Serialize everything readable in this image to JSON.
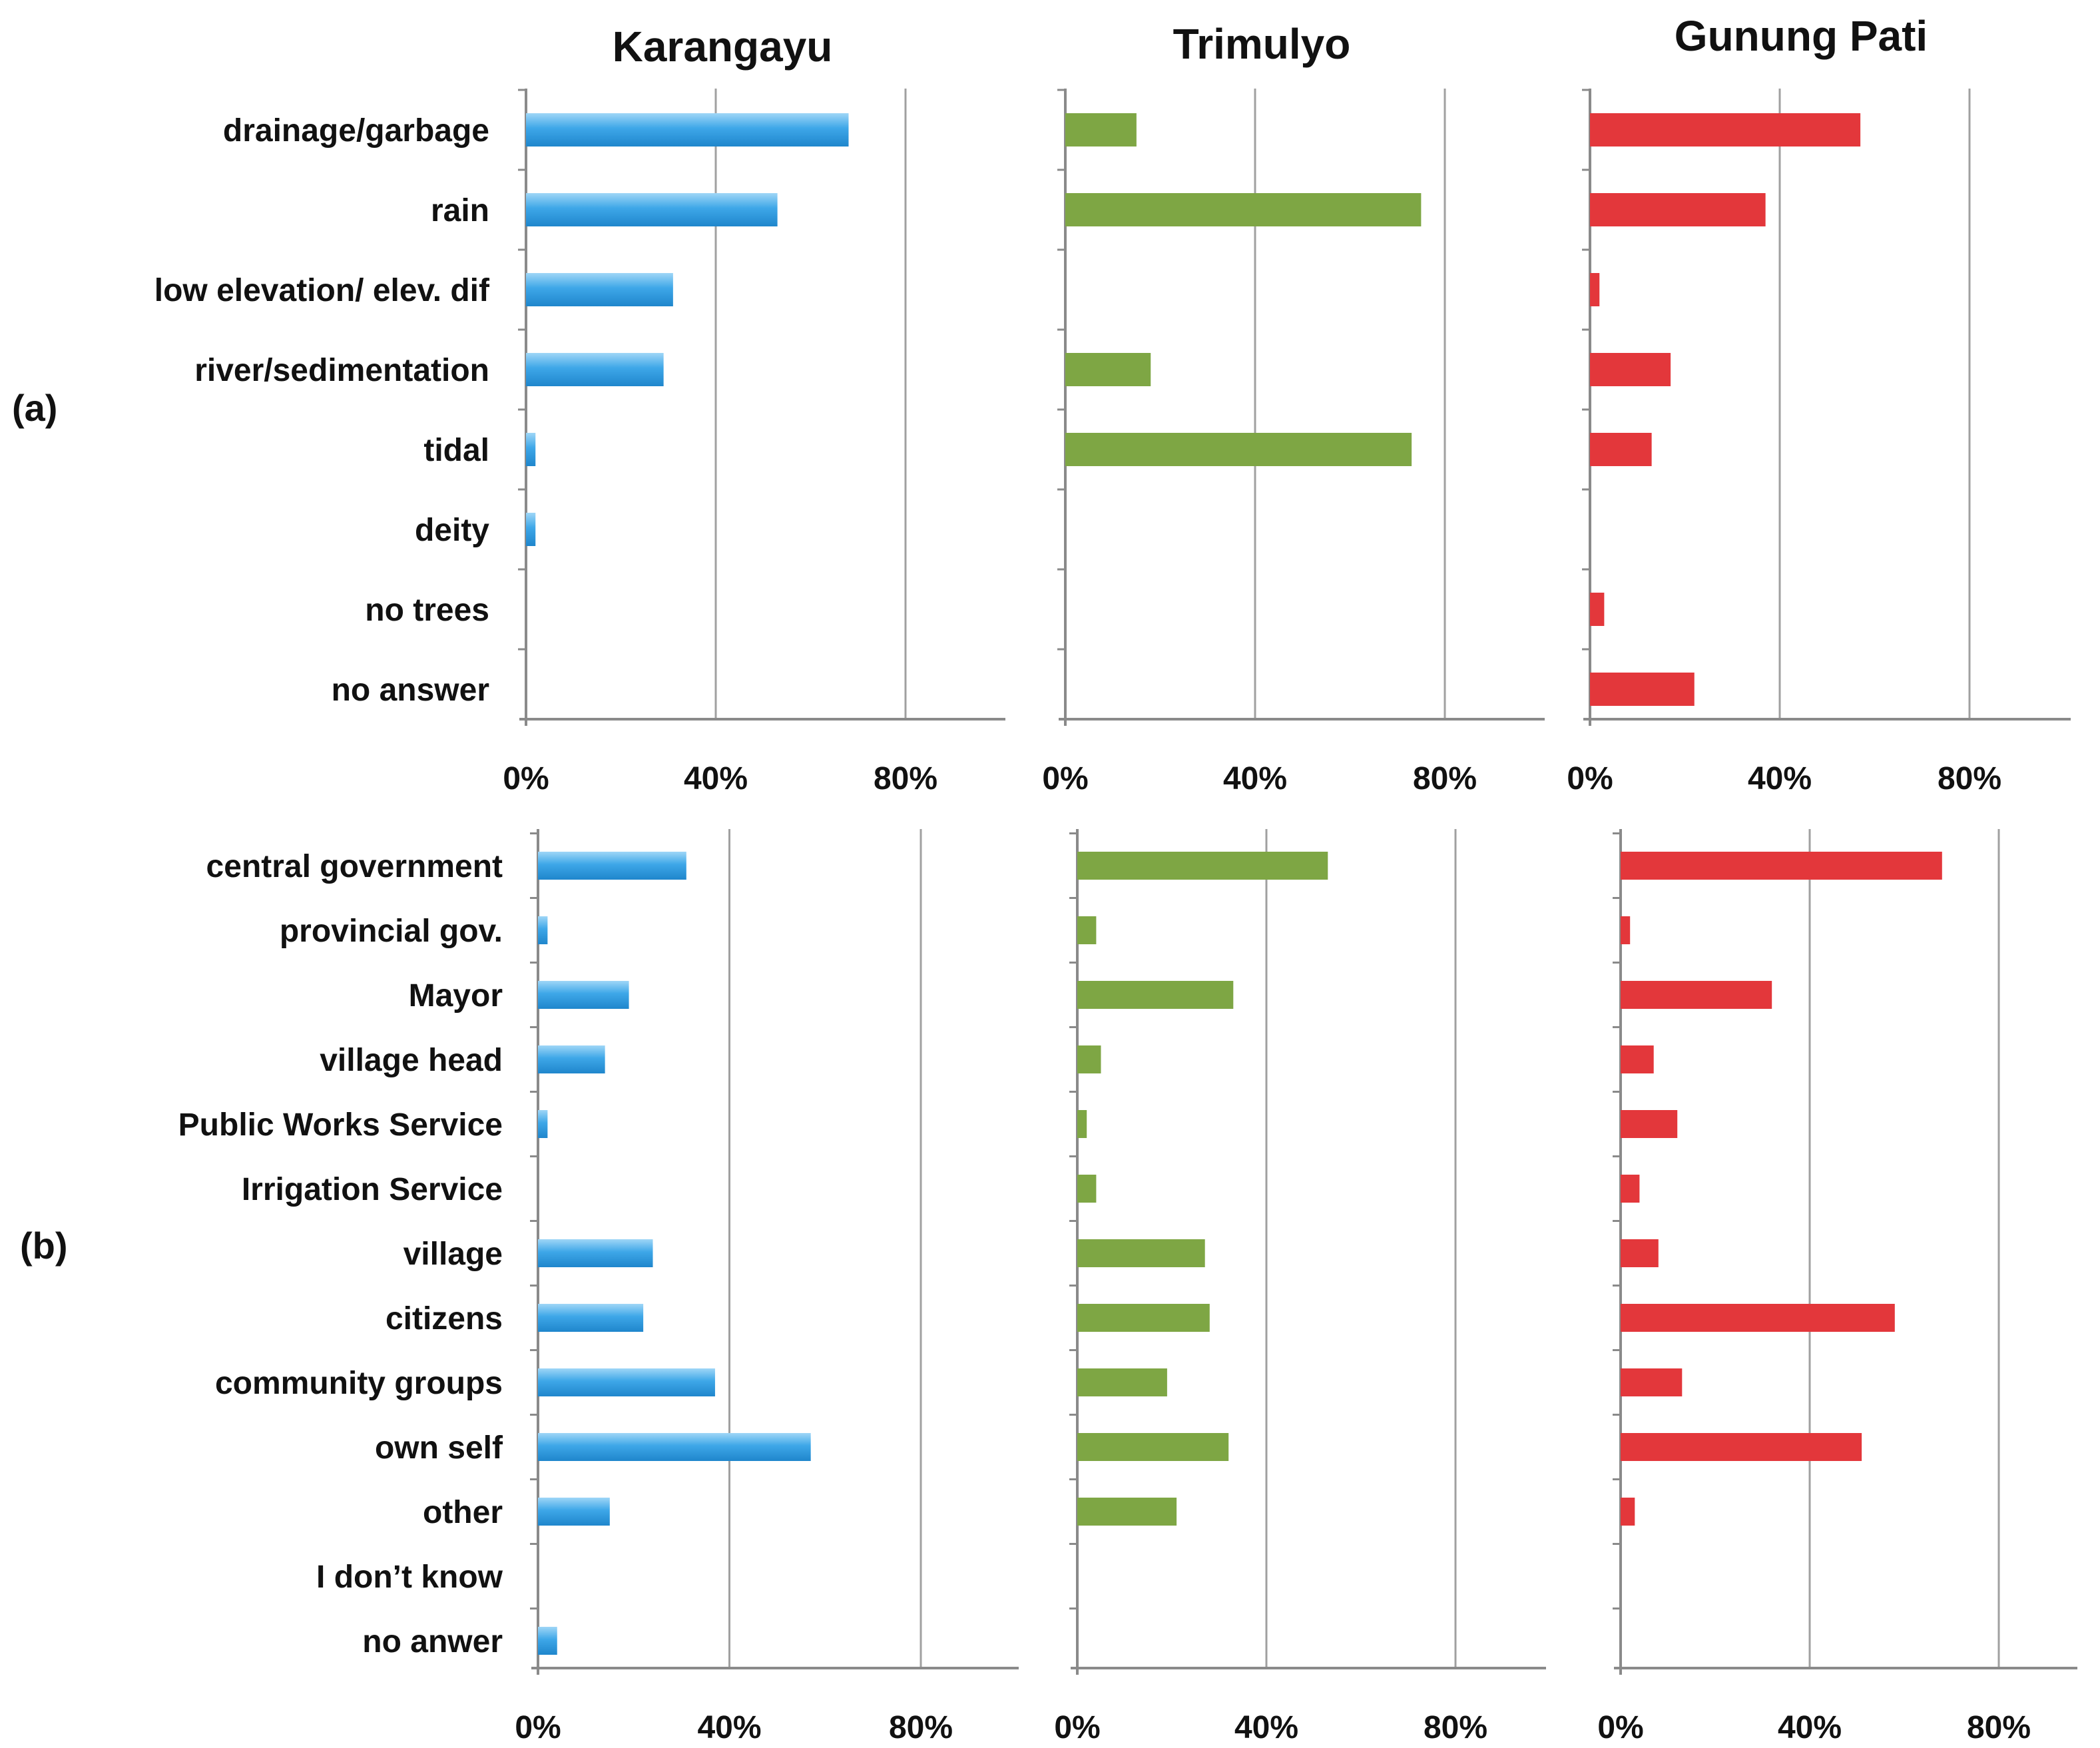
{
  "columns": [
    "Karangayu",
    "Trimulyo",
    "Gunung Pati"
  ],
  "panel_labels": [
    "(a)",
    "(b)"
  ],
  "colors": {
    "Karangayu": "#3ea7e8",
    "Trimulyo": "#7ea644",
    "Gunung Pati": "#e3373b"
  },
  "chart_data": [
    {
      "type": "bar",
      "orientation": "horizontal",
      "panel": "(a)",
      "categories": [
        "drainage/garbage",
        "rain",
        "low elevation/ elev. dif",
        "river/sedimentation",
        "tidal",
        "deity",
        "no trees",
        "no answer"
      ],
      "xticks": [
        "0%",
        "40%",
        "80%"
      ],
      "xlim": [
        0,
        100
      ],
      "grid": true,
      "series": [
        {
          "name": "Karangayu",
          "values": [
            68,
            53,
            31,
            29,
            2,
            2,
            0,
            0
          ]
        },
        {
          "name": "Trimulyo",
          "values": [
            15,
            75,
            0,
            18,
            73,
            0,
            0,
            0
          ]
        },
        {
          "name": "Gunung Pati",
          "values": [
            57,
            37,
            2,
            17,
            13,
            0,
            3,
            22
          ]
        }
      ]
    },
    {
      "type": "bar",
      "orientation": "horizontal",
      "panel": "(b)",
      "categories": [
        "central government",
        "provincial gov.",
        "Mayor",
        "village head",
        "Public Works Service",
        "Irrigation Service",
        "village",
        "citizens",
        "community groups",
        "own self",
        "other",
        "I don’t know",
        "no anwer"
      ],
      "xticks": [
        "0%",
        "40%",
        "80%"
      ],
      "xlim": [
        0,
        100
      ],
      "grid": true,
      "series": [
        {
          "name": "Karangayu",
          "values": [
            31,
            2,
            19,
            14,
            2,
            0,
            24,
            22,
            37,
            57,
            15,
            0,
            4
          ]
        },
        {
          "name": "Trimulyo",
          "values": [
            53,
            4,
            33,
            5,
            2,
            4,
            27,
            28,
            19,
            32,
            21,
            0,
            0
          ]
        },
        {
          "name": "Gunung Pati",
          "values": [
            68,
            2,
            32,
            7,
            12,
            4,
            8,
            58,
            13,
            51,
            3,
            0,
            0
          ]
        }
      ]
    }
  ]
}
